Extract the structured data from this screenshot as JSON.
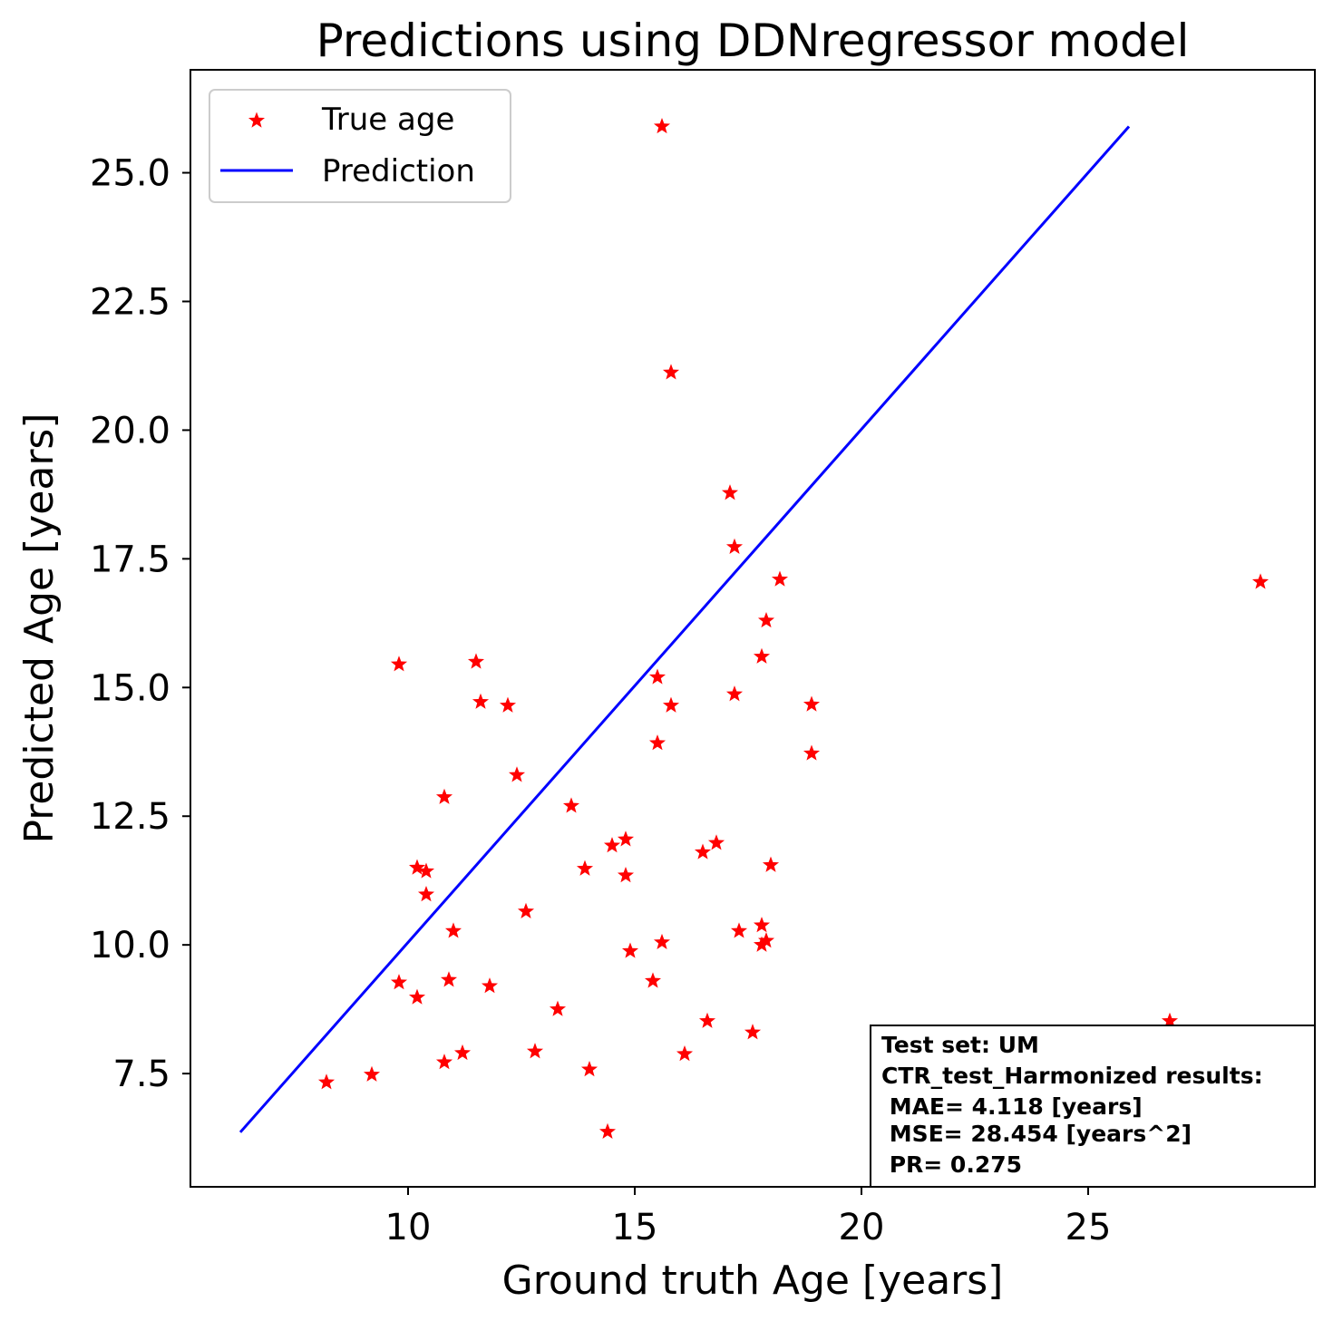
{
  "chart_data": {
    "type": "scatter",
    "title": "Predictions using DDNregressor model",
    "xlabel": "Ground truth Age [years]",
    "ylabel": "Predicted Age [years]",
    "xlim": [
      5.2,
      30.0
    ],
    "ylim": [
      5.3,
      27.0
    ],
    "xticks": [
      10,
      15,
      20,
      25
    ],
    "xtick_labels": [
      "10",
      "15",
      "20",
      "25"
    ],
    "yticks": [
      7.5,
      10.0,
      12.5,
      15.0,
      17.5,
      20.0,
      22.5,
      25.0
    ],
    "ytick_labels": [
      "7.5",
      "10.0",
      "12.5",
      "15.0",
      "17.5",
      "20.0",
      "22.5",
      "25.0"
    ],
    "grid": false,
    "legend_position": "top-left",
    "series": [
      {
        "name": "True age",
        "kind": "scatter",
        "marker": "star",
        "color": "#ff0000",
        "points": [
          [
            8.2,
            7.33
          ],
          [
            9.2,
            7.48
          ],
          [
            9.8,
            15.45
          ],
          [
            9.8,
            9.27
          ],
          [
            10.2,
            11.5
          ],
          [
            10.2,
            8.98
          ],
          [
            10.4,
            11.43
          ],
          [
            10.4,
            10.98
          ],
          [
            10.8,
            12.87
          ],
          [
            10.8,
            7.72
          ],
          [
            10.9,
            9.32
          ],
          [
            11.0,
            10.27
          ],
          [
            11.2,
            7.9
          ],
          [
            11.5,
            15.5
          ],
          [
            11.6,
            14.72
          ],
          [
            11.8,
            9.2
          ],
          [
            12.2,
            14.65
          ],
          [
            12.4,
            13.3
          ],
          [
            12.6,
            10.65
          ],
          [
            12.8,
            7.93
          ],
          [
            13.3,
            8.75
          ],
          [
            13.6,
            12.7
          ],
          [
            13.9,
            11.48
          ],
          [
            14.0,
            7.58
          ],
          [
            14.4,
            6.37
          ],
          [
            14.5,
            11.93
          ],
          [
            14.8,
            12.05
          ],
          [
            14.8,
            11.35
          ],
          [
            14.9,
            9.88
          ],
          [
            15.4,
            9.3
          ],
          [
            15.5,
            15.2
          ],
          [
            15.5,
            13.92
          ],
          [
            15.6,
            25.9
          ],
          [
            15.6,
            10.05
          ],
          [
            15.8,
            21.12
          ],
          [
            15.8,
            14.65
          ],
          [
            16.1,
            7.88
          ],
          [
            16.5,
            11.8
          ],
          [
            16.6,
            8.52
          ],
          [
            16.8,
            11.98
          ],
          [
            17.1,
            18.78
          ],
          [
            17.2,
            17.73
          ],
          [
            17.2,
            14.87
          ],
          [
            17.3,
            10.27
          ],
          [
            17.6,
            8.3
          ],
          [
            17.8,
            15.6
          ],
          [
            17.8,
            10.38
          ],
          [
            17.8,
            10.0
          ],
          [
            17.9,
            16.3
          ],
          [
            17.9,
            10.08
          ],
          [
            18.0,
            11.55
          ],
          [
            18.2,
            17.1
          ],
          [
            18.9,
            14.67
          ],
          [
            18.9,
            13.72
          ],
          [
            26.8,
            8.52
          ],
          [
            28.8,
            17.05
          ]
        ]
      },
      {
        "name": "Prediction",
        "kind": "line",
        "color": "#0000ff",
        "x": [
          6.3,
          25.9
        ],
        "y": [
          6.36,
          25.9
        ]
      }
    ],
    "annotation": {
      "lines": [
        "Test set: UM",
        "CTR_test_Harmonized results:",
        " MAE= 4.118 [years]",
        " MSE= 28.454 [years^2]",
        " PR= 0.275"
      ],
      "position": "bottom-right"
    }
  }
}
